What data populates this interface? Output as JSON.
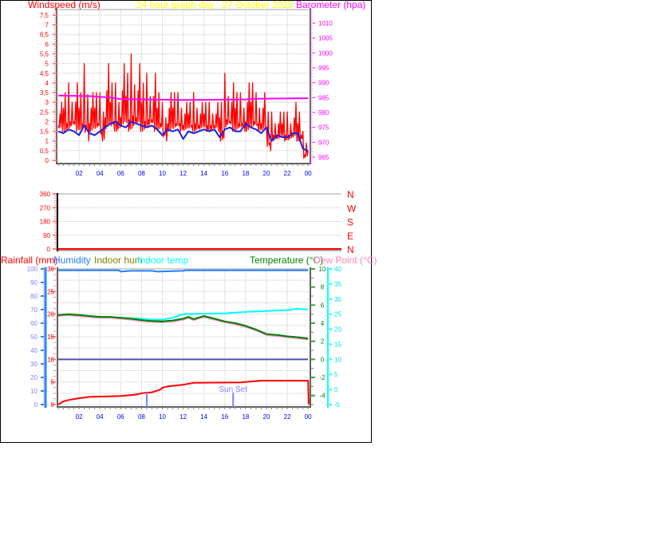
{
  "header": {
    "left_label": "Windspeed (m/s)",
    "title": "24 hour graph day : 27 October 2025",
    "right_label": "Barometer (hpa)"
  },
  "legend": {
    "rainfall": "Rainfall (mm)",
    "humidity": "Humidity",
    "indoor_hum": "Indoor hum",
    "indoor_temp": "Indoor temp",
    "temperature": "Temperature (°C)",
    "dew_point": "Dew Point (°C)"
  },
  "colors": {
    "wind_gust": "#ff0000",
    "wind_avg": "#2020e0",
    "barometer": "#ff00ff",
    "title": "#ffff00",
    "humidity": "#2080ff",
    "indoor_hum": "#808000",
    "indoor_temp": "#00ffff",
    "temperature": "#008000",
    "dew_point": "#ff80c0",
    "rainfall": "#ff0000",
    "zero_line": "#5050a0",
    "sun": "#8080ff"
  },
  "chart_data": [
    {
      "type": "line",
      "title": "24 hour graph day : 27 October 2025",
      "ylabel": "Windspeed (m/s)",
      "y2label": "Barometer (hpa)",
      "ylim": [
        0,
        7.5
      ],
      "y2lim": [
        965,
        1010
      ],
      "x_tick_labels": [
        "02",
        "04",
        "06",
        "08",
        "10",
        "12",
        "14",
        "16",
        "18",
        "20",
        "22",
        "00"
      ],
      "y_tick_labels": [
        "0",
        "0,5",
        "1",
        "1,5",
        "2",
        "2,5",
        "3",
        "3,5",
        "4",
        "4,5",
        "5",
        "5,5",
        "6",
        "6,5",
        "7",
        "7,5"
      ],
      "y2_tick_labels": [
        "965",
        "970",
        "975",
        "980",
        "985",
        "990",
        "995",
        "1000",
        "1005",
        "1010"
      ],
      "grid": true,
      "hours": [
        0,
        0.5,
        1,
        1.5,
        2,
        2.5,
        3,
        3.5,
        4,
        4.5,
        5,
        5.5,
        6,
        6.5,
        7,
        7.5,
        8,
        8.5,
        9,
        9.5,
        10,
        10.5,
        11,
        11.5,
        12,
        12.5,
        13,
        13.5,
        14,
        14.5,
        15,
        15.5,
        16,
        16.5,
        17,
        17.5,
        18,
        18.5,
        19,
        19.5,
        20,
        20.5,
        21,
        21.5,
        22,
        22.5,
        23,
        23.5,
        24
      ],
      "series": [
        {
          "key": "gust_high",
          "values": [
            3.0,
            3.5,
            4.0,
            4.0,
            3.5,
            5.0,
            3.5,
            3.5,
            3.5,
            5.0,
            4.0,
            4.0,
            5.0,
            4.5,
            5.5,
            5.0,
            4.0,
            4.5,
            4.5,
            3.5,
            3.0,
            3.5,
            3.5,
            3.5,
            3.0,
            3.0,
            3.5,
            3.0,
            3.0,
            3.0,
            3.0,
            3.0,
            4.5,
            4.0,
            3.5,
            3.5,
            4.0,
            4.0,
            3.5,
            3.5,
            2.5,
            2.5,
            2.5,
            2.5,
            2.5,
            3.0,
            2.5,
            1.5,
            1.5
          ]
        },
        {
          "key": "gust_low",
          "values": [
            1.5,
            1.5,
            1.5,
            1.5,
            1.5,
            1.0,
            1.5,
            1.5,
            1.0,
            1.5,
            1.5,
            1.5,
            1.5,
            1.5,
            1.5,
            1.5,
            1.5,
            1.5,
            1.5,
            1.5,
            1.0,
            1.5,
            1.5,
            1.5,
            1.5,
            1.5,
            1.5,
            1.5,
            1.5,
            1.5,
            1.5,
            1.0,
            1.5,
            1.5,
            1.5,
            1.5,
            1.5,
            1.5,
            1.5,
            1.5,
            0.5,
            1.0,
            1.0,
            1.0,
            1.0,
            1.0,
            1.0,
            0.0,
            0.5
          ]
        },
        {
          "key": "average",
          "values": [
            1.5,
            1.4,
            1.6,
            1.5,
            1.3,
            1.8,
            1.4,
            1.3,
            1.5,
            1.7,
            1.9,
            2.0,
            1.8,
            1.7,
            2.0,
            1.9,
            1.8,
            1.7,
            1.8,
            1.6,
            1.3,
            1.6,
            1.5,
            1.6,
            1.1,
            1.5,
            1.4,
            1.5,
            1.6,
            1.5,
            1.6,
            1.2,
            1.6,
            1.7,
            1.5,
            1.5,
            1.9,
            1.7,
            1.6,
            1.4,
            1.7,
            1.0,
            1.3,
            1.2,
            1.2,
            1.4,
            1.4,
            0.6,
            0.5
          ]
        }
      ],
      "barometer": {
        "hours": [
          0,
          3,
          5,
          6,
          10,
          12,
          18,
          19,
          24
        ],
        "values": [
          985.7,
          985.5,
          985.0,
          984.5,
          984.3,
          984.2,
          984.4,
          984.6,
          984.8
        ]
      }
    },
    {
      "type": "line",
      "ylim": [
        0,
        360
      ],
      "y_tick_labels": [
        "0",
        "90",
        "180",
        "270",
        "360"
      ],
      "compass_labels": [
        "N",
        "E",
        "S",
        "W",
        "N"
      ],
      "grid": true,
      "hours": [
        0,
        24
      ],
      "values": [
        0,
        0
      ]
    },
    {
      "type": "line",
      "x_tick_labels": [
        "02",
        "04",
        "06",
        "08",
        "10",
        "12",
        "14",
        "16",
        "18",
        "20",
        "22",
        "00"
      ],
      "humidity_axis": {
        "lim": [
          0,
          100
        ],
        "tick_labels": [
          "0",
          "10",
          "20",
          "30",
          "40",
          "50",
          "60",
          "70",
          "80",
          "90",
          "100"
        ]
      },
      "rainfall_axis": {
        "lim": [
          0,
          30
        ],
        "tick_labels": [
          "0",
          "5",
          "10",
          "15",
          "20",
          "25",
          "30"
        ]
      },
      "temperature_axis": {
        "lim": [
          -5,
          10
        ],
        "tick_labels": [
          "-4",
          "-2",
          "0",
          "2",
          "4",
          "6",
          "8",
          "10"
        ]
      },
      "dew_point_axis": {
        "lim": [
          -5,
          40
        ],
        "tick_labels": [
          "-5",
          "0",
          "5",
          "10",
          "15",
          "20",
          "25",
          "30",
          "35",
          "40"
        ]
      },
      "grid": true,
      "series": [
        {
          "key": "humidity",
          "name": "Humidity",
          "hours": [
            0,
            5.8,
            6,
            7,
            9,
            9.5,
            12,
            12.3,
            14,
            24
          ],
          "values": [
            99,
            99,
            98,
            98.6,
            98.6,
            98,
            98.6,
            99,
            99,
            99
          ]
        },
        {
          "key": "temperature",
          "name": "Temperature (°C)",
          "hours": [
            0,
            1,
            2,
            3,
            4,
            5,
            6,
            7,
            8,
            9,
            10,
            11,
            12,
            12.5,
            13,
            14,
            15,
            16,
            17,
            18,
            19,
            20,
            21,
            22,
            23,
            24
          ],
          "values": [
            4.9,
            5.0,
            4.9,
            4.8,
            4.7,
            4.7,
            4.6,
            4.5,
            4.35,
            4.25,
            4.2,
            4.3,
            4.5,
            4.7,
            4.45,
            4.8,
            4.5,
            4.2,
            4.0,
            3.7,
            3.3,
            2.8,
            2.7,
            2.55,
            2.45,
            2.3
          ]
        },
        {
          "key": "dew_point",
          "name": "Dew Point (°C)",
          "hours": [
            0,
            1,
            2,
            3,
            4,
            5,
            6,
            7,
            8,
            9,
            10,
            11,
            12,
            12.5,
            13,
            14,
            15,
            16,
            17,
            18,
            19,
            20,
            21,
            22,
            23,
            24
          ],
          "values": [
            4.8,
            4.9,
            4.8,
            4.7,
            4.6,
            4.6,
            4.5,
            4.4,
            4.25,
            4.15,
            4.1,
            4.2,
            4.4,
            4.6,
            4.35,
            4.7,
            4.4,
            4.1,
            3.9,
            3.6,
            3.2,
            2.7,
            2.6,
            2.45,
            2.35,
            2.2
          ]
        },
        {
          "key": "indoor_temp",
          "name": "Indoor temp",
          "hours": [
            0,
            2,
            4,
            6,
            8,
            9,
            10,
            11,
            12,
            14,
            16,
            18,
            20,
            22,
            23,
            24
          ],
          "values": [
            4.9,
            4.85,
            4.7,
            4.6,
            4.5,
            4.4,
            4.4,
            4.6,
            5.0,
            5.05,
            5.1,
            5.25,
            5.35,
            5.45,
            5.6,
            5.5
          ]
        },
        {
          "key": "zero_line",
          "hours": [
            0,
            24
          ],
          "values": [
            0,
            0
          ]
        },
        {
          "key": "rainfall",
          "name": "Rainfall (mm)",
          "hours": [
            0,
            0.5,
            1,
            2,
            3,
            6,
            7.5,
            8,
            9,
            9.8,
            10,
            10.5,
            12,
            13,
            17.5,
            19.5,
            24,
            24.05
          ],
          "values": [
            0,
            0.7,
            1.0,
            1.4,
            1.7,
            1.9,
            2.2,
            2.5,
            2.7,
            3.3,
            3.7,
            4.0,
            4.4,
            4.8,
            4.9,
            5.3,
            5.3,
            0
          ]
        }
      ],
      "markers": [
        {
          "hour": 8.5,
          "label": ""
        },
        {
          "hour": 16.8,
          "label": "Sun Set"
        }
      ]
    }
  ]
}
